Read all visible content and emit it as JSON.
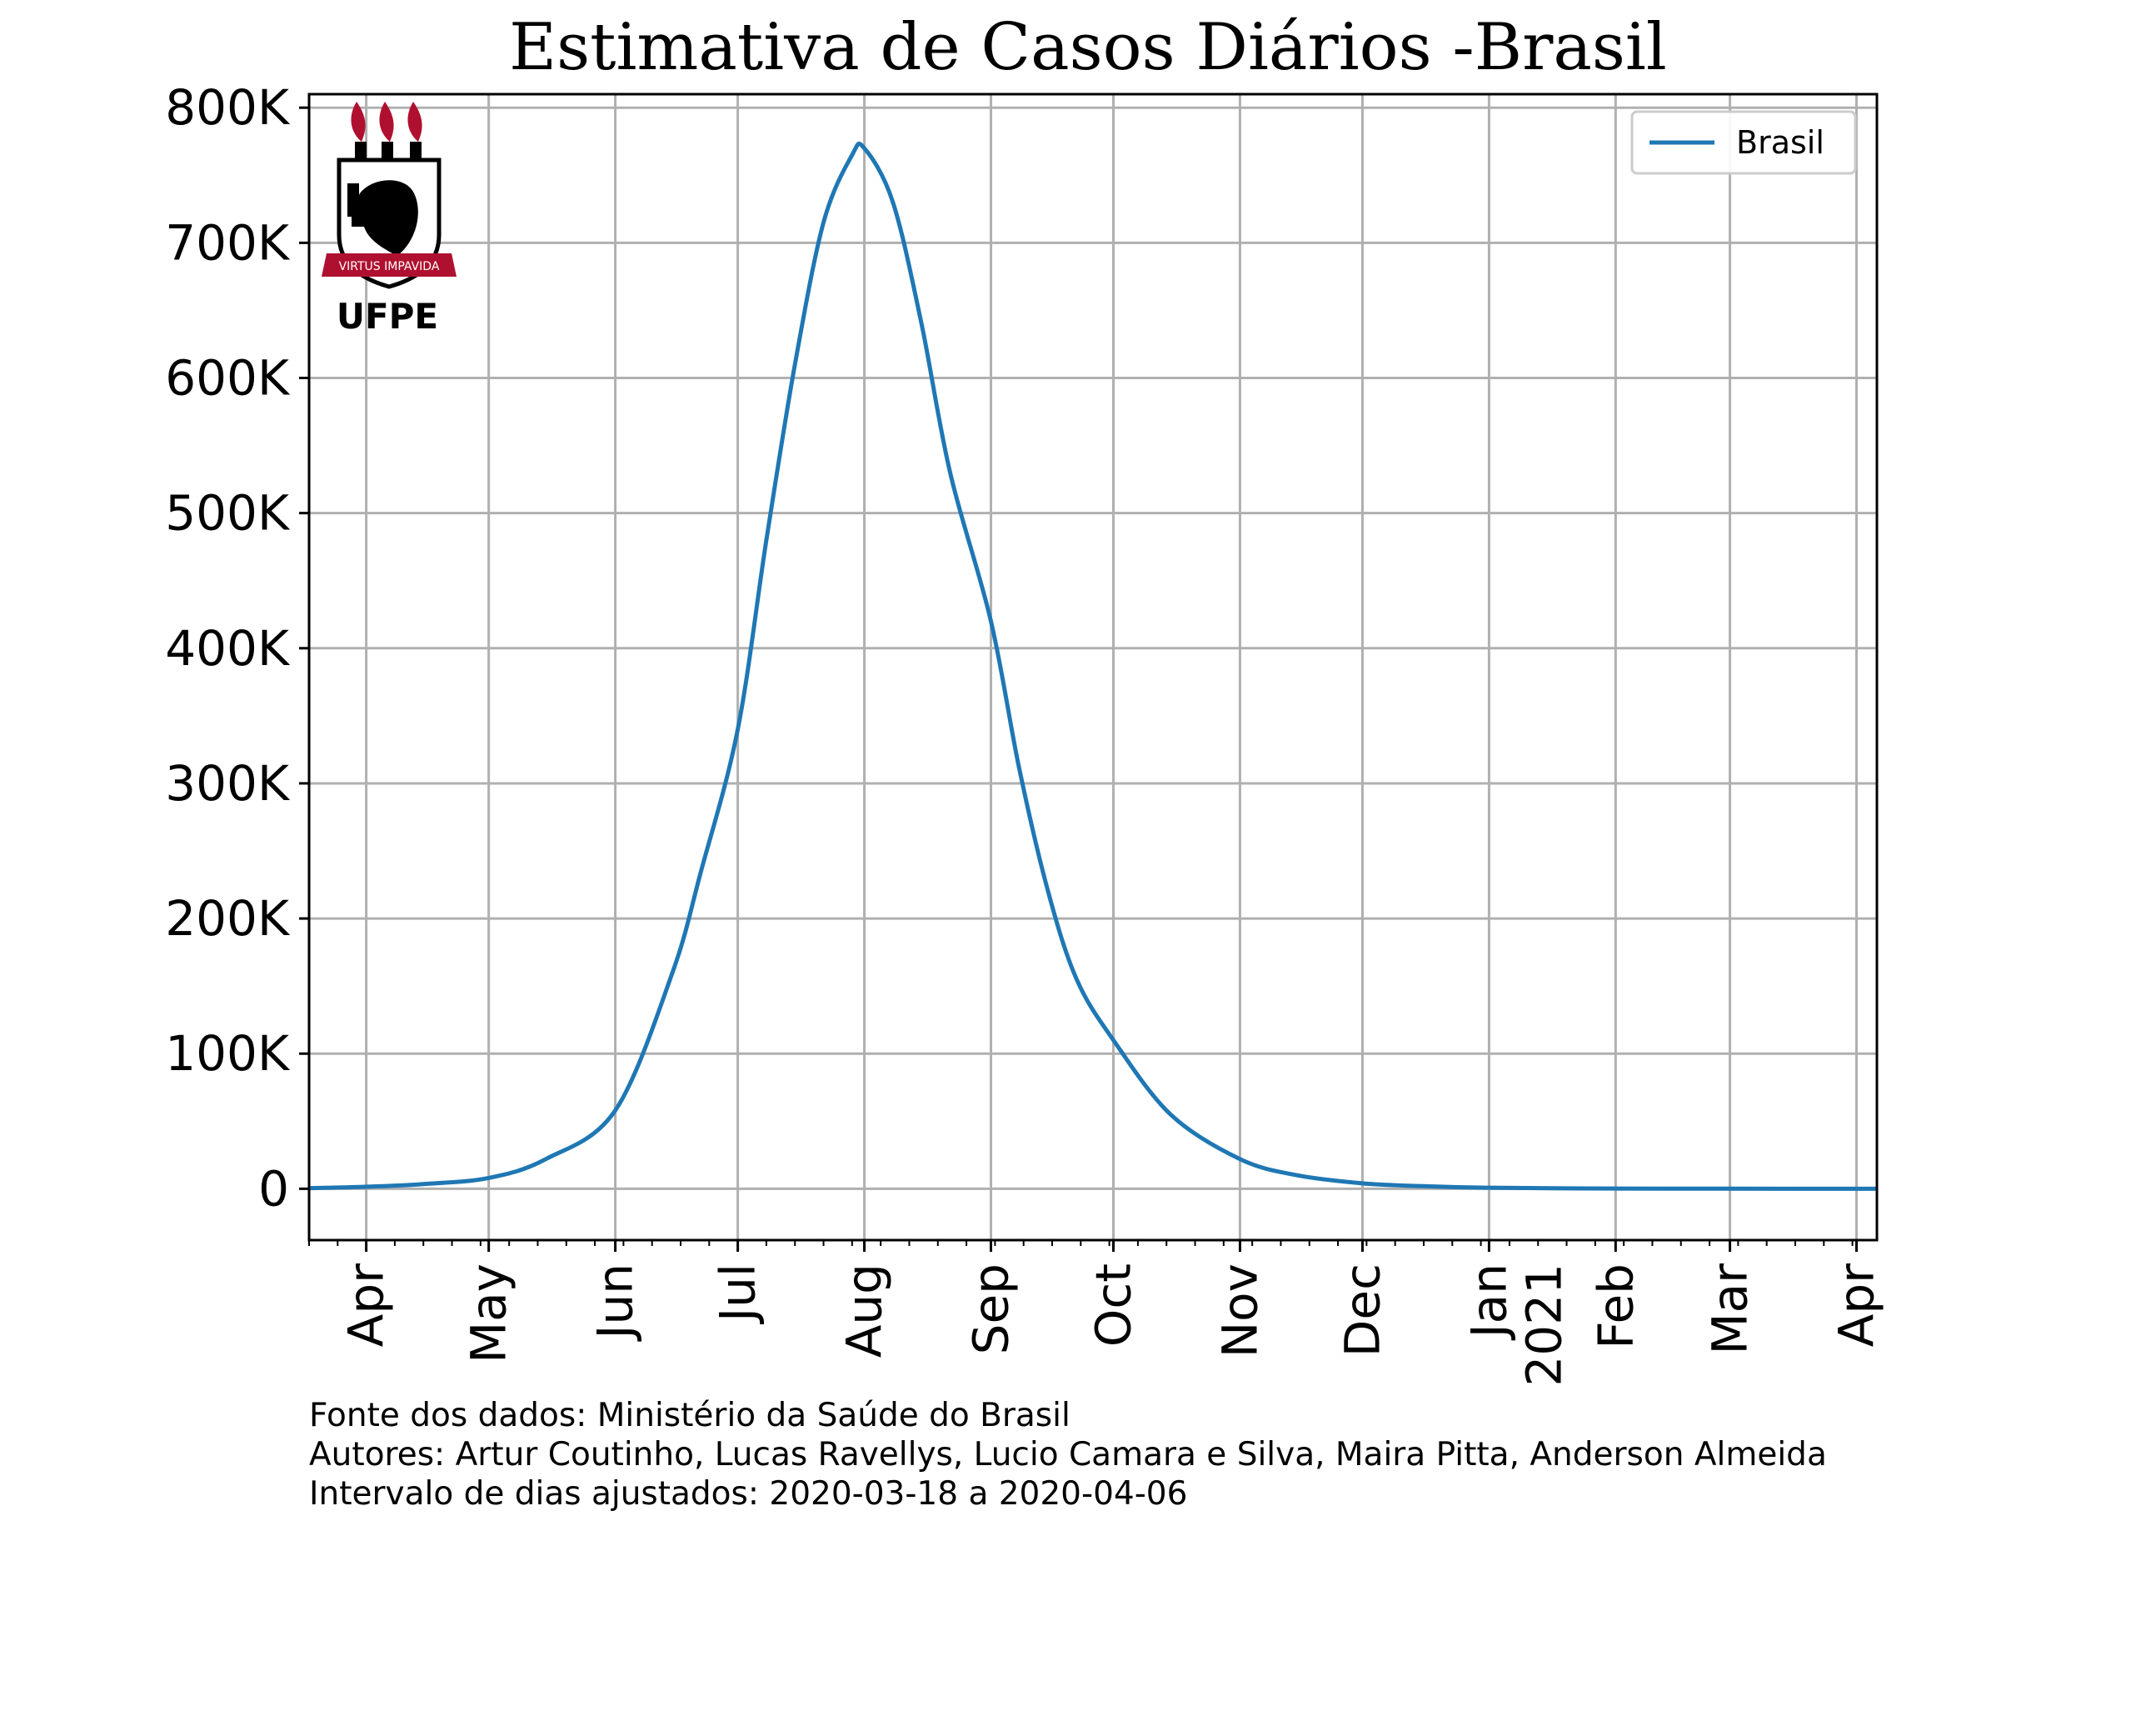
{
  "chart_data": {
    "type": "line",
    "title": "Estimativa de Casos Diários -Brasil",
    "xlabel": "",
    "ylabel": "",
    "x_range": [
      "2020-03-18",
      "2021-04-06"
    ],
    "ylim": [
      -38000,
      810000
    ],
    "grid": true,
    "legend_position": "top-right",
    "y_ticks": [
      {
        "value": 0,
        "label": "0"
      },
      {
        "value": 100000,
        "label": "100K"
      },
      {
        "value": 200000,
        "label": "200K"
      },
      {
        "value": 300000,
        "label": "300K"
      },
      {
        "value": 400000,
        "label": "400K"
      },
      {
        "value": 500000,
        "label": "500K"
      },
      {
        "value": 600000,
        "label": "600K"
      },
      {
        "value": 700000,
        "label": "700K"
      },
      {
        "value": 800000,
        "label": "800K"
      }
    ],
    "x_ticks": [
      {
        "date": "2020-04-01",
        "label": "Apr"
      },
      {
        "date": "2020-05-01",
        "label": "May"
      },
      {
        "date": "2020-06-01",
        "label": "Jun"
      },
      {
        "date": "2020-07-01",
        "label": "Jul"
      },
      {
        "date": "2020-08-01",
        "label": "Aug"
      },
      {
        "date": "2020-09-01",
        "label": "Sep"
      },
      {
        "date": "2020-10-01",
        "label": "Oct"
      },
      {
        "date": "2020-11-01",
        "label": "Nov"
      },
      {
        "date": "2020-12-01",
        "label": "Dec"
      },
      {
        "date": "2021-01-01",
        "label": "Jan",
        "label2": "2021"
      },
      {
        "date": "2021-02-01",
        "label": "Feb"
      },
      {
        "date": "2021-03-01",
        "label": "Mar"
      },
      {
        "date": "2021-04-01",
        "label": "Apr"
      }
    ],
    "series": [
      {
        "name": "Brasil",
        "color": "#1f77b4",
        "points": [
          {
            "x": "2020-03-18",
            "y": 500
          },
          {
            "x": "2020-04-01",
            "y": 1500
          },
          {
            "x": "2020-04-15",
            "y": 3500
          },
          {
            "x": "2020-05-01",
            "y": 8000
          },
          {
            "x": "2020-05-15",
            "y": 22000
          },
          {
            "x": "2020-06-01",
            "y": 58000
          },
          {
            "x": "2020-06-15",
            "y": 160000
          },
          {
            "x": "2020-06-22",
            "y": 235000
          },
          {
            "x": "2020-07-01",
            "y": 340000
          },
          {
            "x": "2020-07-08",
            "y": 480000
          },
          {
            "x": "2020-07-15",
            "y": 610000
          },
          {
            "x": "2020-07-22",
            "y": 715000
          },
          {
            "x": "2020-07-29",
            "y": 765000
          },
          {
            "x": "2020-08-01",
            "y": 770000
          },
          {
            "x": "2020-08-08",
            "y": 730000
          },
          {
            "x": "2020-08-15",
            "y": 640000
          },
          {
            "x": "2020-08-22",
            "y": 530000
          },
          {
            "x": "2020-09-01",
            "y": 420000
          },
          {
            "x": "2020-09-08",
            "y": 310000
          },
          {
            "x": "2020-09-15",
            "y": 220000
          },
          {
            "x": "2020-09-22",
            "y": 155000
          },
          {
            "x": "2020-10-01",
            "y": 110000
          },
          {
            "x": "2020-10-15",
            "y": 55000
          },
          {
            "x": "2020-11-01",
            "y": 22000
          },
          {
            "x": "2020-11-15",
            "y": 10000
          },
          {
            "x": "2020-12-01",
            "y": 4000
          },
          {
            "x": "2020-12-15",
            "y": 2000
          },
          {
            "x": "2021-01-01",
            "y": 800
          },
          {
            "x": "2021-02-01",
            "y": 150
          },
          {
            "x": "2021-03-01",
            "y": 30
          },
          {
            "x": "2021-04-06",
            "y": 5
          }
        ]
      }
    ]
  },
  "logo": {
    "name": "UFPE",
    "motto": "VIRTUS IMPAVIDA",
    "accent_color": "#b01030"
  },
  "footnotes": [
    "Fonte dos dados: Ministério da Saúde do Brasil",
    "Autores: Artur Coutinho, Lucas Ravellys, Lucio Camara e Silva, Maira Pitta, Anderson Almeida",
    "Intervalo de dias ajustados: 2020-03-18 a 2020-04-06"
  ]
}
